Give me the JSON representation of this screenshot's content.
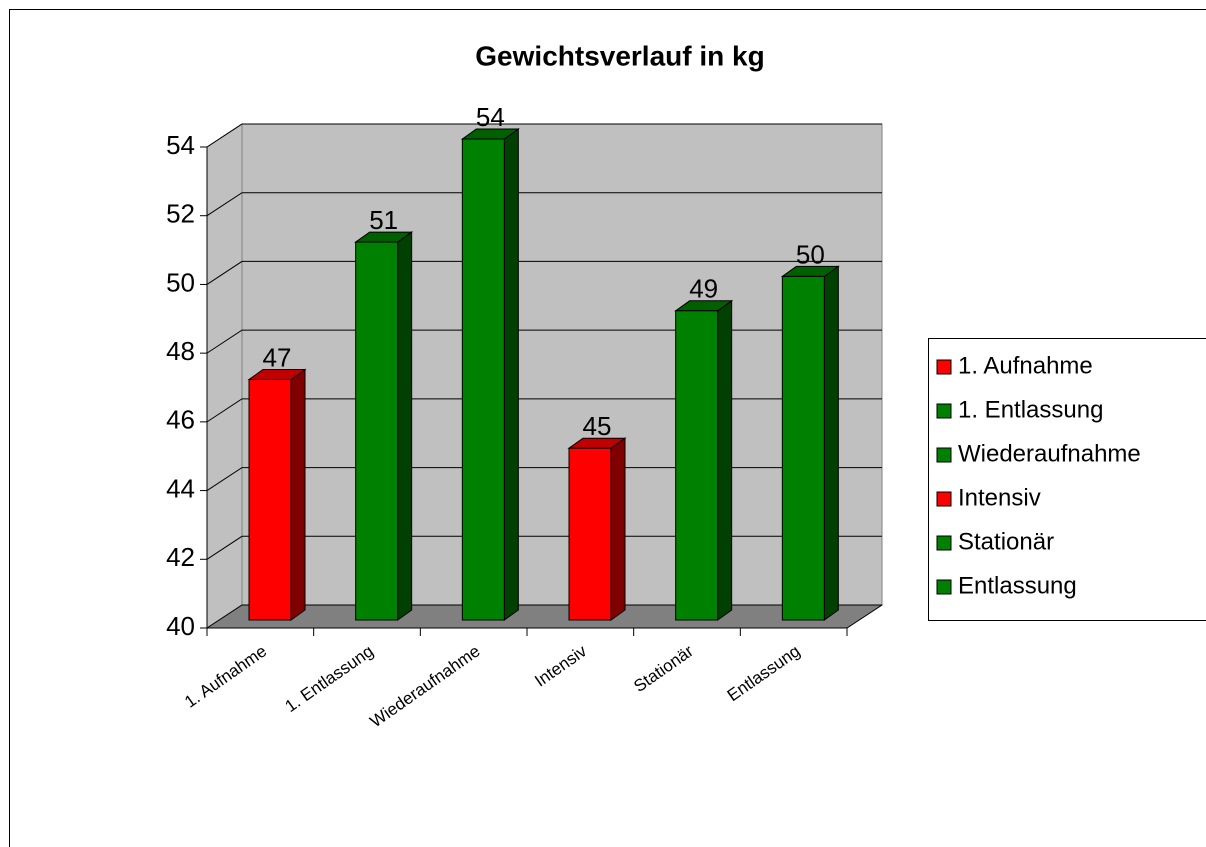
{
  "chart_data": {
    "type": "bar3d",
    "title": "Gewichtsverlauf in kg",
    "categories": [
      "1. Aufnahme",
      "1. Entlassung",
      "Wiederaufnahme",
      "Intensiv",
      "Stationär",
      "Entlassung"
    ],
    "values": [
      47,
      51,
      54,
      45,
      49,
      50
    ],
    "colors": [
      "#ff0000",
      "#008000",
      "#008000",
      "#ff0000",
      "#008000",
      "#008000"
    ],
    "ylim": [
      40,
      54
    ],
    "yticks": [
      40,
      42,
      44,
      46,
      48,
      50,
      52,
      54
    ],
    "grid": true,
    "legend": "right"
  }
}
